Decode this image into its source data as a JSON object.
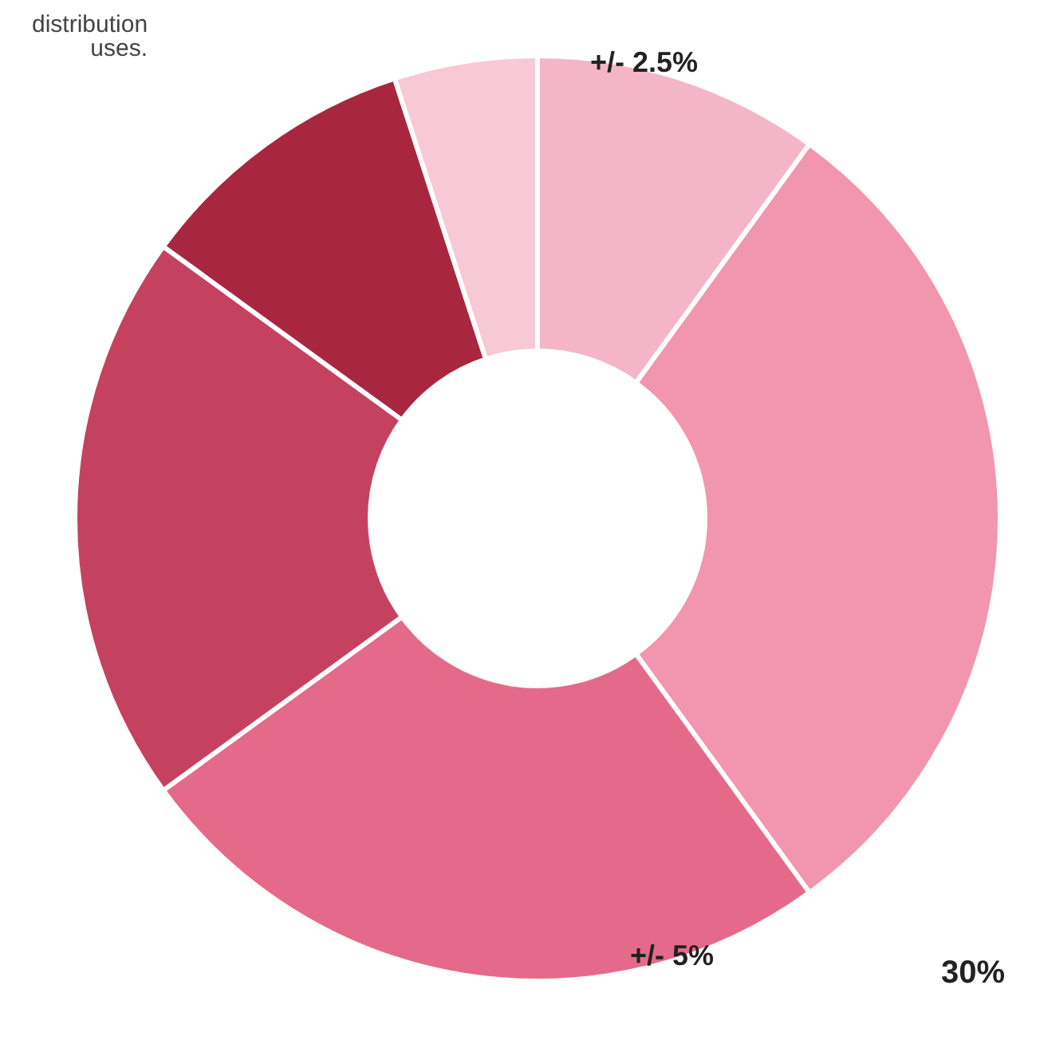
{
  "chart_data": {
    "type": "donut",
    "categories": [
      null,
      null,
      null,
      null,
      null,
      null
    ],
    "values": [
      10,
      30,
      25,
      20,
      10,
      5
    ],
    "colors": [
      "#f5b5c8",
      "#f295ae",
      "#e56a89",
      "#c5425f",
      "#a8273f",
      "#f7c8d5"
    ],
    "annotations": [
      "distribution\nuses.",
      "+/- 2.5%",
      "+/- 5%",
      "30%"
    ]
  }
}
